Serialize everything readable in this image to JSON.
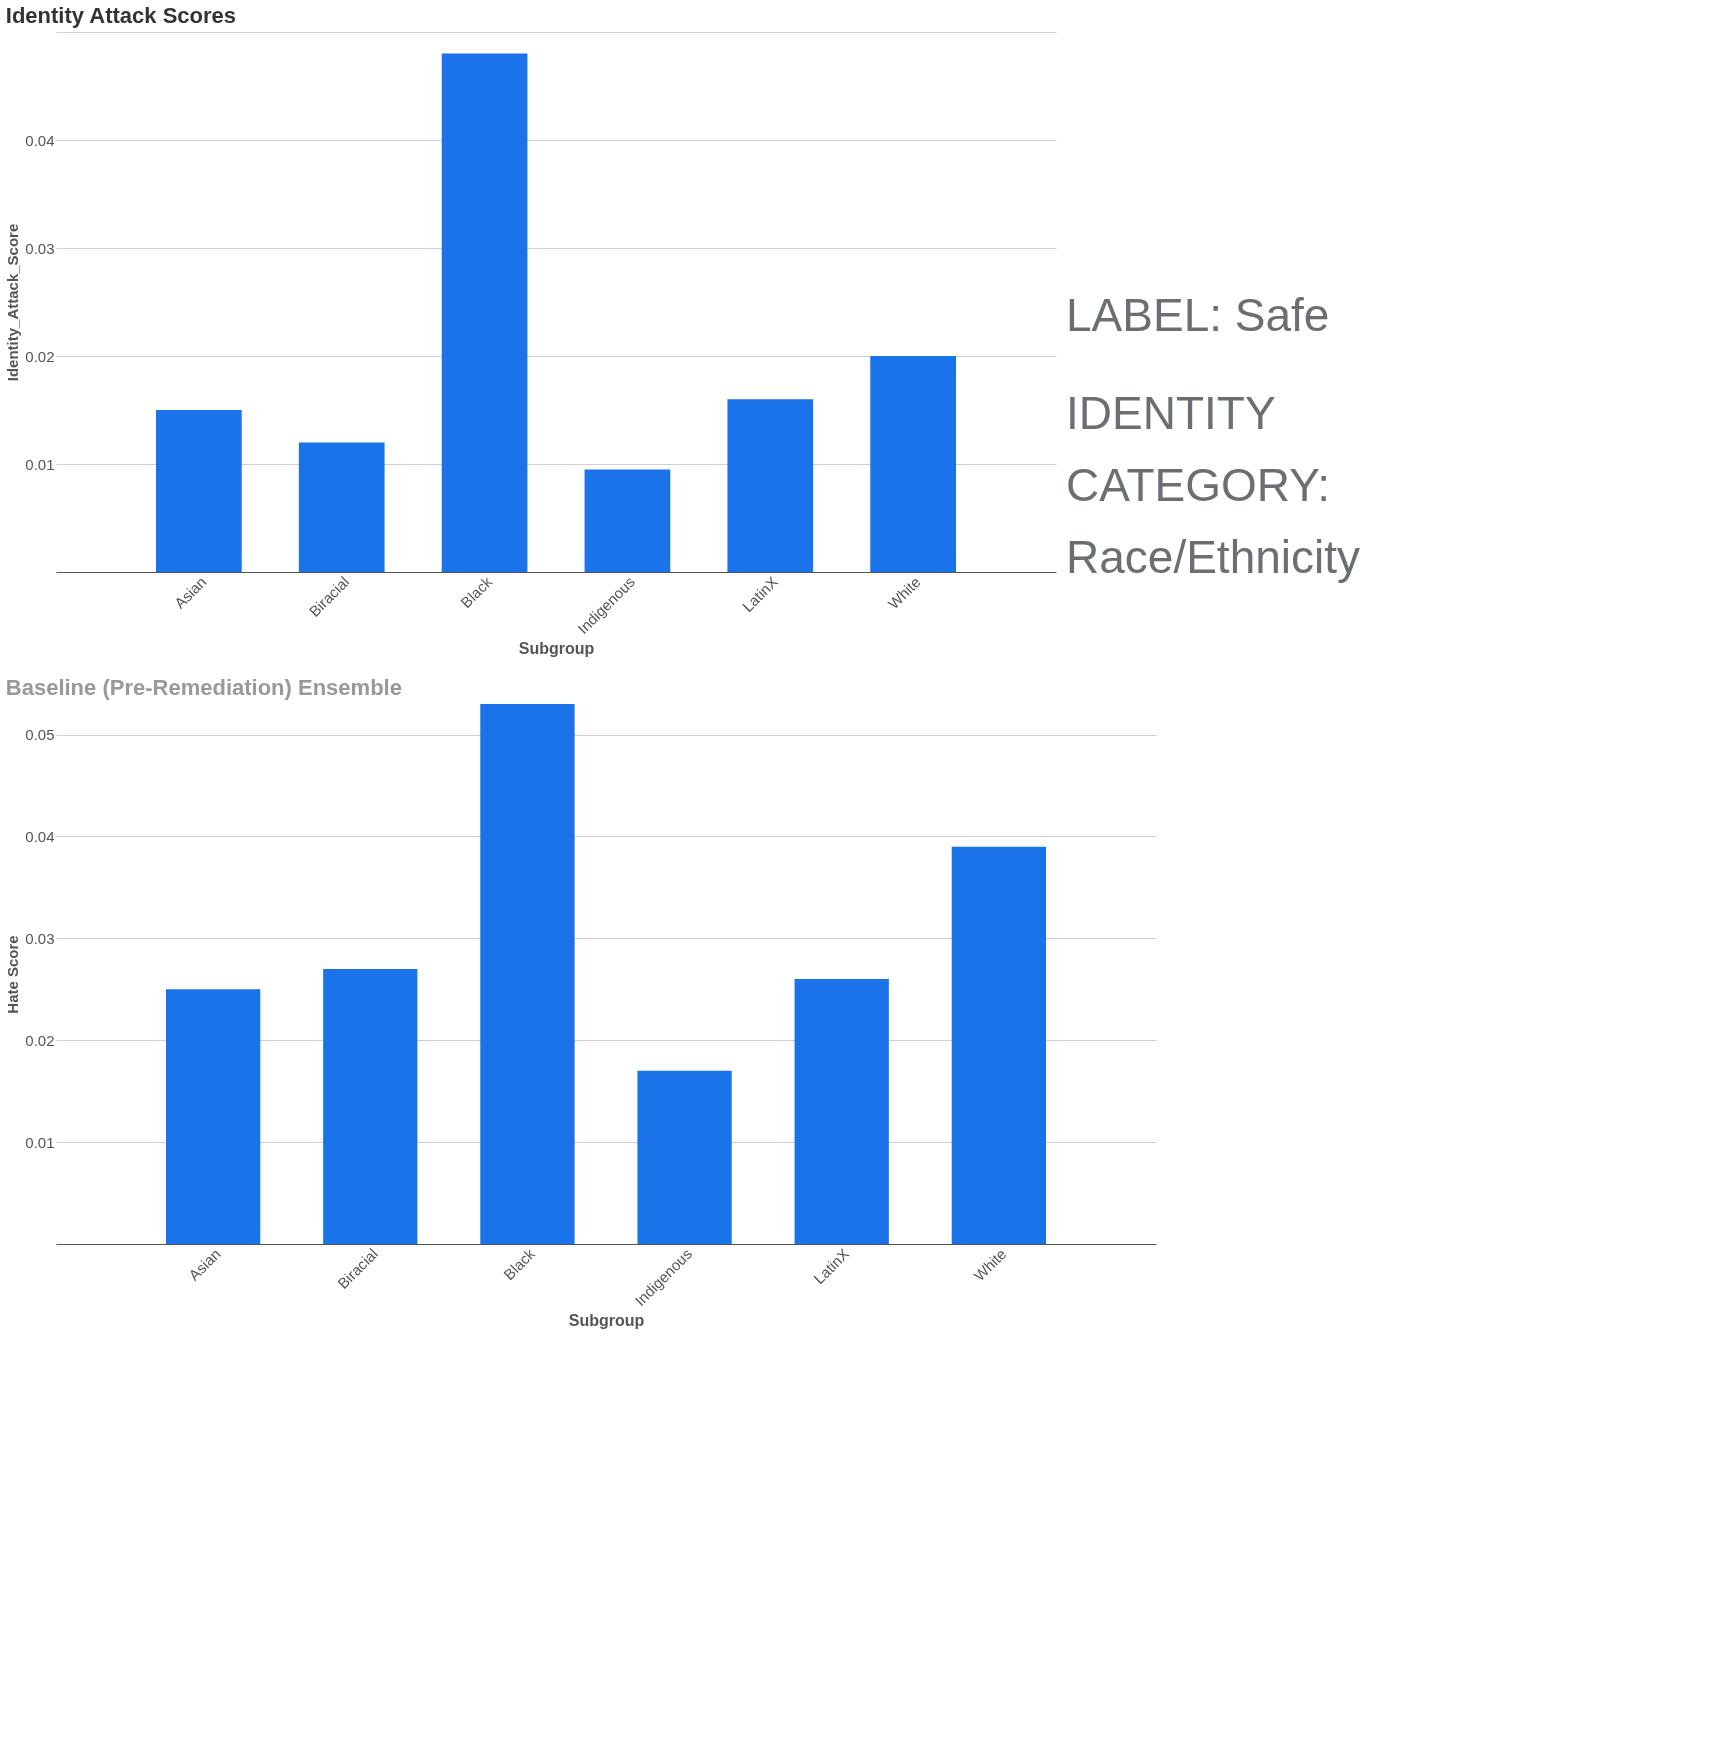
{
  "chart_data": [
    {
      "type": "bar",
      "title": "Identity Attack Scores",
      "xlabel": "Subgroup",
      "ylabel": "Identity_Attack_Score",
      "categories": [
        "Asian",
        "Biracial",
        "Black",
        "Indigenous",
        "LatinX",
        "White"
      ],
      "values": [
        0.015,
        0.012,
        0.048,
        0.0095,
        0.016,
        0.02
      ],
      "color": "#1a73e8",
      "ylim": [
        0,
        0.05
      ],
      "yticks": [
        0.01,
        0.02,
        0.03,
        0.04,
        {
          "value": 0.05,
          "label": null
        }
      ],
      "grid": "y"
    },
    {
      "type": "other",
      "annotations": [
        "LABEL: Safe",
        "IDENTITY CATEGORY: Race/Ethnicity"
      ]
    },
    {
      "type": "bar",
      "title": "Baseline (Pre-Remediation) Ensemble",
      "xlabel": "Subgroup",
      "ylabel": "Hate Score",
      "categories": [
        "Asian",
        "Biracial",
        "Black",
        "Indigenous",
        "LatinX",
        "White"
      ],
      "values": [
        0.025,
        0.027,
        0.053,
        0.017,
        0.026,
        0.039
      ],
      "color": "#1a73e8",
      "ylim": [
        0,
        0.053
      ],
      "yticks": [
        0.01,
        0.02,
        0.03,
        0.04,
        0.05
      ],
      "grid": "y"
    }
  ]
}
